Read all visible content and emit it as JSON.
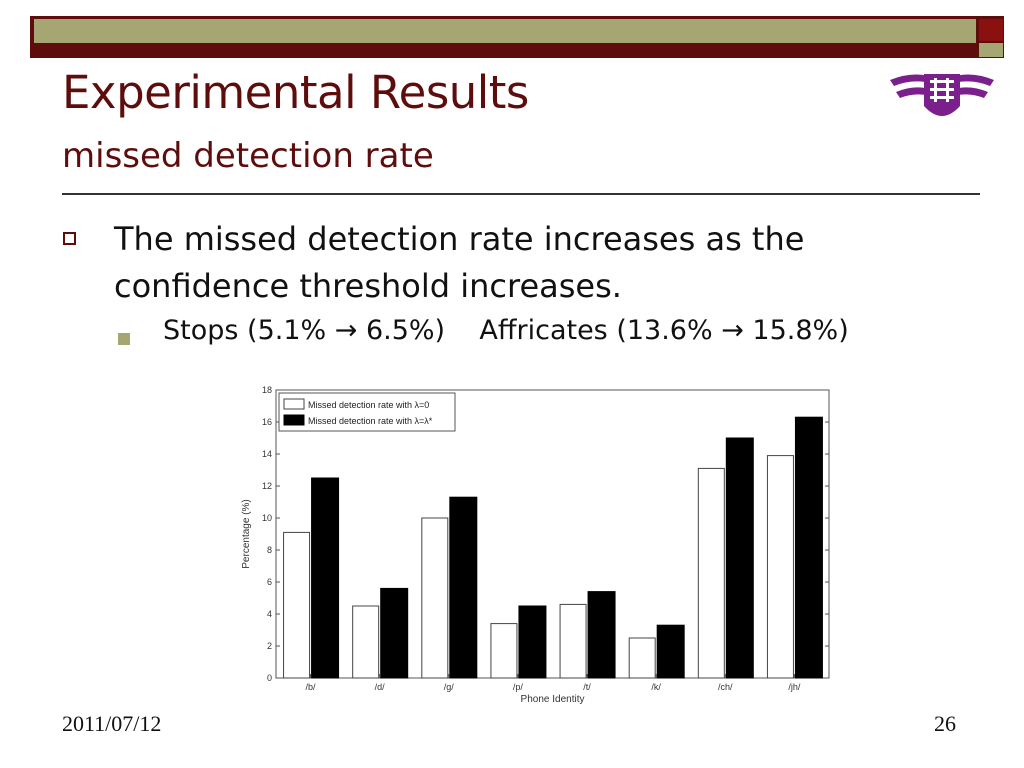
{
  "slide": {
    "title": "Experimental Results",
    "subtitle": "missed detection rate",
    "bullet": "The missed detection rate increases as the confidence threshold increases.",
    "sub_bullet": {
      "stops": "Stops (5.1% → 6.5%)",
      "affricates": "Affricates (13.6% → 15.8%)"
    },
    "footer_date": "2011/07/12",
    "page_number": "26"
  },
  "colors": {
    "title": "#5e0d0d",
    "accent": "#a5a671",
    "bar_series_1": "#ffffff",
    "bar_series_2": "#000000"
  },
  "icons": {
    "logo": "university-emblem-icon",
    "bullet": "hollow-square-bullet-icon",
    "sub_bullet": "filled-square-bullet-icon"
  },
  "chart_data": {
    "type": "bar",
    "xlabel": "Phone Identity",
    "ylabel": "Percentage (%)",
    "ylim": [
      0,
      18
    ],
    "yticks": [
      0,
      2,
      4,
      6,
      8,
      10,
      12,
      14,
      16,
      18
    ],
    "categories": [
      "/b/",
      "/d/",
      "/g/",
      "/p/",
      "/t/",
      "/k/",
      "/ch/",
      "/jh/"
    ],
    "series": [
      {
        "name": "Missed detection rate with λ=0",
        "values": [
          9.1,
          4.5,
          10.0,
          3.4,
          4.6,
          2.5,
          13.1,
          13.9
        ]
      },
      {
        "name": "Missed detection rate with λ=λ*",
        "values": [
          12.5,
          5.6,
          11.3,
          4.5,
          5.4,
          3.3,
          15.0,
          16.3
        ]
      }
    ],
    "legend_position": "top-left",
    "grid": false
  }
}
